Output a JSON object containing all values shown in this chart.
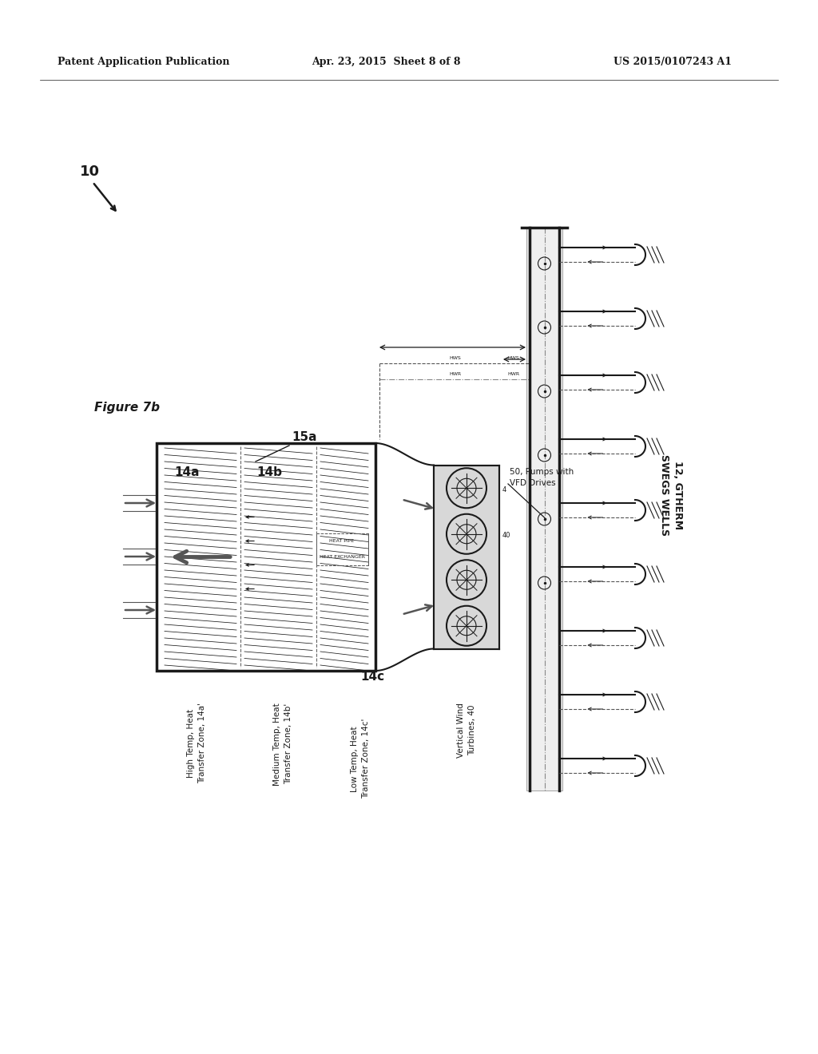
{
  "bg_color": "#ffffff",
  "header_left": "Patent Application Publication",
  "header_center": "Apr. 23, 2015  Sheet 8 of 8",
  "header_right": "US 2015/0107243 A1",
  "ref_10": "10",
  "ref_15a": "15a",
  "ref_14a": "14a",
  "ref_14b": "14b",
  "ref_14c": "14c",
  "label_14a_full": "High Temp, Heat\nTransfer Zone, 14a'",
  "label_14b_full": "Medium Temp, Heat\nTransfer Zone, 14b'",
  "label_14c_full": "Low Temp, Heat\nTransfer Zone, 14c'",
  "label_40": "Vertical Wind\nTurbines, 40",
  "label_pumps": "50, Pumps with\nVFD Drives",
  "label_wells": "12, GTHERM\nSWEGS WELLS",
  "lc": "#1a1a1a",
  "gray_fill": "#d8d8d8",
  "light_gray": "#efefef"
}
